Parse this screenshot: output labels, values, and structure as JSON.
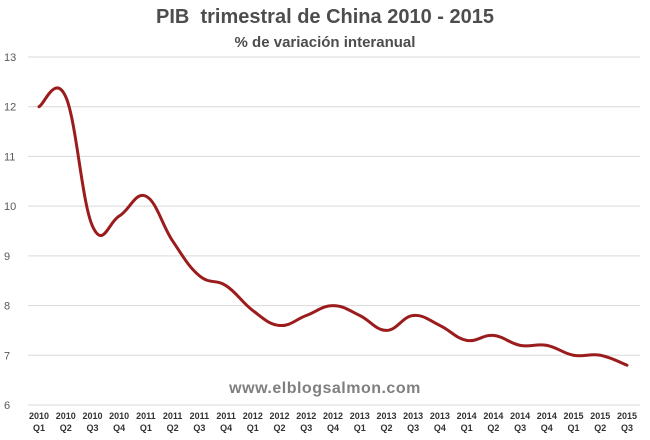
{
  "chart_data": {
    "type": "line",
    "title": "PIB  trimestral de China 2010 - 2015",
    "subtitle": "% de variación interanual",
    "watermark": "www.elblogsalmon.com",
    "categories": [
      [
        "2010",
        "Q1"
      ],
      [
        "2010",
        "Q2"
      ],
      [
        "2010",
        "Q3"
      ],
      [
        "2010",
        "Q4"
      ],
      [
        "2011",
        "Q1"
      ],
      [
        "2011",
        "Q2"
      ],
      [
        "2011",
        "Q3"
      ],
      [
        "2011",
        "Q4"
      ],
      [
        "2012",
        "Q1"
      ],
      [
        "2012",
        "Q2"
      ],
      [
        "2012",
        "Q3"
      ],
      [
        "2012",
        "Q4"
      ],
      [
        "2013",
        "Q1"
      ],
      [
        "2013",
        "Q2"
      ],
      [
        "2013",
        "Q3"
      ],
      [
        "2013",
        "Q4"
      ],
      [
        "2014",
        "Q1"
      ],
      [
        "2014",
        "Q2"
      ],
      [
        "2014",
        "Q3"
      ],
      [
        "2014",
        "Q4"
      ],
      [
        "2015",
        "Q1"
      ],
      [
        "2015",
        "Q2"
      ],
      [
        "2015",
        "Q3"
      ]
    ],
    "values": [
      12.0,
      12.2,
      9.6,
      9.8,
      10.2,
      9.3,
      8.6,
      8.4,
      7.9,
      7.6,
      7.8,
      8.0,
      7.8,
      7.5,
      7.8,
      7.6,
      7.3,
      7.4,
      7.2,
      7.2,
      7.0,
      7.0,
      6.8
    ],
    "ylim": [
      6,
      13
    ],
    "yticks": [
      6,
      7,
      8,
      9,
      10,
      11,
      12,
      13
    ],
    "grid": true,
    "line_color": "#9b1c1c",
    "grid_color": "#d9d9d9"
  }
}
